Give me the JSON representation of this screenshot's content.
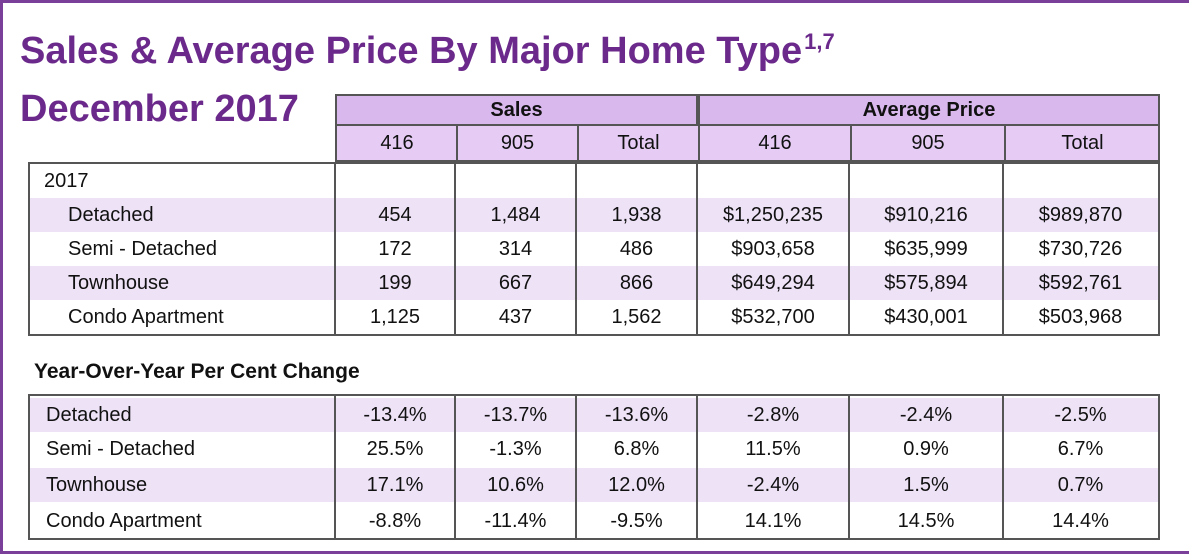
{
  "title": {
    "main": "Sales & Average Price By Major Home Type",
    "superscript": "1,7",
    "subtitle": "December 2017"
  },
  "header": {
    "groups": [
      "Sales",
      "Average Price"
    ],
    "columns": [
      "416",
      "905",
      "Total",
      "416",
      "905",
      "Total"
    ]
  },
  "table_2017": {
    "year_label": "2017",
    "rows": [
      {
        "label": "Detached",
        "values": [
          "454",
          "1,484",
          "1,938",
          "$1,250,235",
          "$910,216",
          "$989,870"
        ]
      },
      {
        "label": "Semi - Detached",
        "values": [
          "172",
          "314",
          "486",
          "$903,658",
          "$635,999",
          "$730,726"
        ]
      },
      {
        "label": "Townhouse",
        "values": [
          "199",
          "667",
          "866",
          "$649,294",
          "$575,894",
          "$592,761"
        ]
      },
      {
        "label": "Condo Apartment",
        "values": [
          "1,125",
          "437",
          "1,562",
          "$532,700",
          "$430,001",
          "$503,968"
        ]
      }
    ]
  },
  "yoy": {
    "title": "Year-Over-Year Per Cent Change",
    "rows": [
      {
        "label": "Detached",
        "values": [
          "-13.4%",
          "-13.7%",
          "-13.6%",
          "-2.8%",
          "-2.4%",
          "-2.5%"
        ]
      },
      {
        "label": "Semi - Detached",
        "values": [
          "25.5%",
          "-1.3%",
          "6.8%",
          "11.5%",
          "0.9%",
          "6.7%"
        ]
      },
      {
        "label": "Townhouse",
        "values": [
          "17.1%",
          "10.6%",
          "12.0%",
          "-2.4%",
          "1.5%",
          "0.7%"
        ]
      },
      {
        "label": "Condo Apartment",
        "values": [
          "-8.8%",
          "-11.4%",
          "-9.5%",
          "14.1%",
          "14.5%",
          "14.4%"
        ]
      }
    ]
  }
}
